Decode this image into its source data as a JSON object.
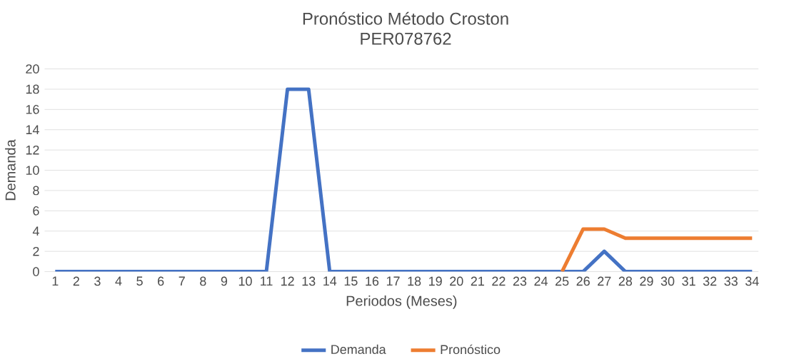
{
  "chart_data": {
    "type": "line",
    "title": "Pronóstico Método Croston",
    "subtitle": "PER078762",
    "xlabel": "Periodos (Meses)",
    "ylabel": "Demanda",
    "categories": [
      "1",
      "2",
      "3",
      "4",
      "5",
      "6",
      "7",
      "8",
      "9",
      "10",
      "11",
      "12",
      "13",
      "14",
      "15",
      "16",
      "17",
      "18",
      "19",
      "20",
      "21",
      "22",
      "23",
      "24",
      "25",
      "26",
      "27",
      "28",
      "29",
      "30",
      "31",
      "32",
      "33",
      "34"
    ],
    "series": [
      {
        "name": "Demanda",
        "color": "#4472c4",
        "values": [
          0,
          0,
          0,
          0,
          0,
          0,
          0,
          0,
          0,
          0,
          0,
          18,
          18,
          0,
          0,
          0,
          0,
          0,
          0,
          0,
          0,
          0,
          0,
          0,
          0,
          0,
          2,
          0,
          0,
          0,
          0,
          0,
          0,
          0
        ]
      },
      {
        "name": "Pronóstico",
        "color": "#ed7d31",
        "values": [
          null,
          null,
          null,
          null,
          null,
          null,
          null,
          null,
          null,
          null,
          null,
          null,
          null,
          null,
          null,
          null,
          null,
          null,
          null,
          null,
          null,
          null,
          null,
          null,
          0,
          4.2,
          4.2,
          3.3,
          3.3,
          3.3,
          3.3,
          3.3,
          3.3,
          3.3
        ]
      }
    ],
    "ylim": [
      0,
      20
    ],
    "yticks": [
      0,
      2,
      4,
      6,
      8,
      10,
      12,
      14,
      16,
      18,
      20
    ],
    "grid": "y",
    "legend": "bottom",
    "marker": "none",
    "line_style": "solid"
  }
}
